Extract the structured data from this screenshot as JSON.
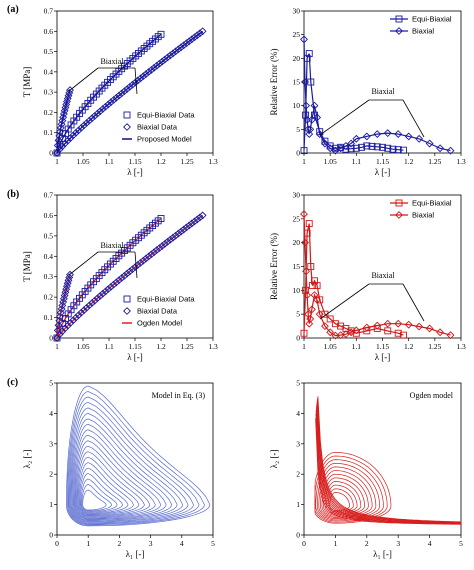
{
  "panel_labels": [
    "(a)",
    "(b)",
    "(c)"
  ],
  "chart_data": [
    {
      "id": "a-left",
      "type": "scatter",
      "panel": "(a)",
      "xlabel": "λ [-]",
      "ylabel": "T [MPa]",
      "xlim": [
        1,
        1.3
      ],
      "ylim": [
        0,
        0.7
      ],
      "xticks": [
        "1",
        "1.05",
        "1.1",
        "1.15",
        "1.2",
        "1.25",
        "1.3"
      ],
      "yticks": [
        "0",
        "0.1",
        "0.2",
        "0.3",
        "0.4",
        "0.5",
        "0.6",
        "0.7"
      ],
      "annotation": "Biaxial",
      "model_label": "Proposed Model",
      "series": [
        {
          "name": "Equi-Biaxial Data",
          "marker": "square",
          "color": "#1a1aa0",
          "x_range": [
            1.0,
            1.2
          ],
          "y_range": [
            0.0,
            0.585
          ],
          "n": 38,
          "exp": 0.72
        },
        {
          "name": "Biaxial Data",
          "marker": "diamond",
          "color": "#1a1aa0",
          "x_range": [
            1.0,
            1.28
          ],
          "y_range": [
            0.0,
            0.6
          ],
          "n": 55,
          "exp": 0.88
        },
        {
          "name": "Biaxial Data",
          "marker": "diamond",
          "color": "#1a1aa0",
          "x_range": [
            1.0,
            1.025
          ],
          "y_range": [
            0.0,
            0.31
          ],
          "n": 18,
          "exp": 0.75
        },
        {
          "name": "Proposed Model",
          "marker": "line",
          "color": "#0c0c8c"
        }
      ]
    },
    {
      "id": "a-right",
      "type": "line",
      "panel": "(a)",
      "xlabel": "λ [-]",
      "ylabel": "Relative Error (%)",
      "xlim": [
        1,
        1.3
      ],
      "ylim": [
        0,
        30
      ],
      "xticks": [
        "1",
        "1.05",
        "1.1",
        "1.15",
        "1.2",
        "1.25",
        "1.3"
      ],
      "yticks": [
        "0",
        "5",
        "10",
        "15",
        "20",
        "25",
        "30"
      ],
      "annotation": "Biaxial",
      "series": [
        {
          "name": "Equi-Biaxial",
          "marker": "square",
          "color": "#1a1aa0",
          "x": [
            1.0,
            1.003,
            1.006,
            1.01,
            1.013,
            1.02,
            1.03,
            1.04,
            1.05,
            1.06,
            1.07,
            1.08,
            1.09,
            1.1,
            1.11,
            1.12,
            1.13,
            1.14,
            1.15,
            1.16,
            1.17,
            1.18,
            1.19
          ],
          "y": [
            0.5,
            8,
            20,
            21,
            15,
            8,
            4.5,
            2.5,
            1.5,
            1.0,
            1.2,
            0.8,
            0.9,
            1.0,
            1.2,
            1.5,
            1.4,
            1.3,
            1.2,
            1.0,
            0.8,
            0.7,
            0.6
          ]
        },
        {
          "name": "Biaxial",
          "marker": "diamond",
          "color": "#1a1aa0",
          "x": [
            1.0,
            1.002,
            1.004,
            1.006,
            1.008,
            1.01,
            1.012,
            1.015,
            1.02,
            1.025,
            1.03,
            1.04,
            1.05,
            1.06,
            1.07,
            1.08,
            1.09,
            1.1,
            1.12,
            1.14,
            1.16,
            1.18,
            1.2,
            1.22,
            1.24,
            1.26,
            1.28
          ],
          "y": [
            24,
            15,
            10,
            7,
            5,
            4,
            5,
            7,
            10,
            7.5,
            4,
            2,
            1,
            0.5,
            1,
            1.5,
            2,
            3,
            3.5,
            4,
            4.2,
            4,
            3.5,
            3,
            2,
            1,
            0.5
          ]
        }
      ]
    },
    {
      "id": "b-left",
      "type": "scatter",
      "panel": "(b)",
      "xlabel": "λ [-]",
      "ylabel": "T [MPa]",
      "xlim": [
        1,
        1.3
      ],
      "ylim": [
        0,
        0.7
      ],
      "xticks": [
        "1",
        "1.05",
        "1.1",
        "1.15",
        "1.2",
        "1.25",
        "1.3"
      ],
      "yticks": [
        "0",
        "0.1",
        "0.2",
        "0.3",
        "0.4",
        "0.5",
        "0.6",
        "0.7"
      ],
      "annotation": "Biaxial",
      "model_label": "Ogden Model",
      "series": [
        {
          "name": "Equi-Biaxial Data",
          "marker": "square",
          "color": "#1a1aa0",
          "x_range": [
            1.0,
            1.2
          ],
          "y_range": [
            0.0,
            0.585
          ],
          "n": 38,
          "exp": 0.72
        },
        {
          "name": "Biaxial Data",
          "marker": "diamond",
          "color": "#1a1aa0",
          "x_range": [
            1.0,
            1.28
          ],
          "y_range": [
            0.0,
            0.6
          ],
          "n": 55,
          "exp": 0.88
        },
        {
          "name": "Biaxial Data",
          "marker": "diamond",
          "color": "#1a1aa0",
          "x_range": [
            1.0,
            1.025
          ],
          "y_range": [
            0.0,
            0.31
          ],
          "n": 18,
          "exp": 0.75
        },
        {
          "name": "Ogden Model",
          "marker": "line",
          "color": "#e02020"
        }
      ]
    },
    {
      "id": "b-right",
      "type": "line",
      "panel": "(b)",
      "xlabel": "λ [-]",
      "ylabel": "Relative Error (%)",
      "xlim": [
        1,
        1.3
      ],
      "ylim": [
        0,
        30
      ],
      "xticks": [
        "1",
        "1.05",
        "1.1",
        "1.15",
        "1.2",
        "1.25",
        "1.3"
      ],
      "yticks": [
        "0",
        "5",
        "10",
        "15",
        "20",
        "25",
        "30"
      ],
      "annotation": "Biaxial",
      "series": [
        {
          "name": "Equi-Biaxial",
          "marker": "square",
          "color": "#d01818",
          "x": [
            1.0,
            1.003,
            1.006,
            1.01,
            1.013,
            1.016,
            1.02,
            1.025,
            1.03,
            1.04,
            1.05,
            1.06,
            1.07,
            1.08,
            1.09,
            1.1,
            1.12,
            1.14,
            1.16,
            1.18,
            1.19
          ],
          "y": [
            1,
            10,
            22,
            24,
            15,
            11,
            12,
            11,
            8,
            5,
            4,
            3,
            2.5,
            2,
            1.5,
            1,
            1.5,
            2,
            1.5,
            1,
            0.6
          ]
        },
        {
          "name": "Biaxial",
          "marker": "diamond",
          "color": "#d01818",
          "x": [
            1.0,
            1.002,
            1.004,
            1.006,
            1.008,
            1.01,
            1.012,
            1.015,
            1.02,
            1.025,
            1.03,
            1.04,
            1.05,
            1.06,
            1.07,
            1.08,
            1.09,
            1.1,
            1.12,
            1.14,
            1.16,
            1.18,
            1.2,
            1.22,
            1.24,
            1.26,
            1.28
          ],
          "y": [
            26,
            20,
            14,
            9,
            5,
            3,
            4,
            6,
            9,
            8,
            5,
            2.5,
            1.2,
            0.5,
            0.6,
            0.8,
            1.2,
            1.6,
            2.2,
            2.6,
            3,
            3,
            2.8,
            2.4,
            2,
            1.2,
            0.6
          ]
        }
      ]
    },
    {
      "id": "c-left",
      "type": "contour",
      "panel": "(c)",
      "title": "Model in Eq. (3)",
      "xlabel": "λ₁ [-]",
      "ylabel": "λ₂ [-]",
      "xlim": [
        0,
        5
      ],
      "ylim": [
        0,
        5
      ],
      "xticks": [
        "0",
        "1",
        "2",
        "3",
        "4",
        "5"
      ],
      "yticks": [
        "0",
        "1",
        "2",
        "3",
        "4",
        "5"
      ],
      "color": "#5a6cd0",
      "levels": 20
    },
    {
      "id": "c-right",
      "type": "contour",
      "panel": "(c)",
      "title": "Ogden model",
      "xlabel": "λ₁ [-]",
      "ylabel": "λ₂ [-]",
      "xlim": [
        0,
        5
      ],
      "ylim": [
        0,
        5
      ],
      "xticks": [
        "0",
        "1",
        "2",
        "3",
        "4",
        "5"
      ],
      "yticks": [
        "0",
        "1",
        "2",
        "3",
        "4",
        "5"
      ],
      "color": "#d81e1e",
      "levels": 22
    }
  ]
}
